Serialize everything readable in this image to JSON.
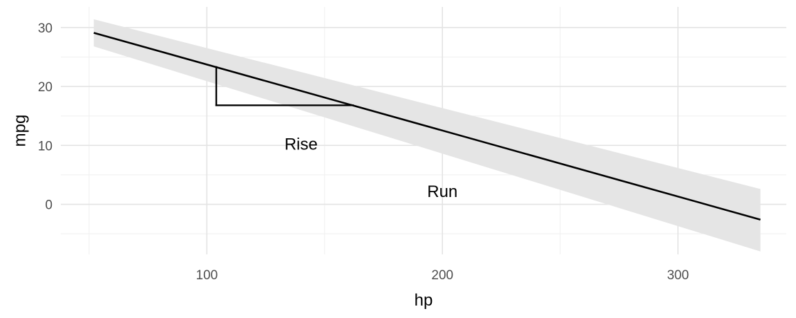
{
  "chart_data": {
    "type": "line",
    "title": "",
    "xlabel": "hp",
    "ylabel": "mpg",
    "xlim": [
      38,
      346
    ],
    "ylim": [
      -8.5,
      33.5
    ],
    "x_major_ticks": [
      100,
      200,
      300
    ],
    "x_minor_ticks": [
      50,
      150,
      250
    ],
    "y_major_ticks": [
      0,
      10,
      20,
      30
    ],
    "y_minor_ticks": [
      -5,
      5,
      15,
      25
    ],
    "x_tick_labels": [
      "100",
      "200",
      "300"
    ],
    "y_tick_labels": [
      "0",
      "10",
      "20",
      "30"
    ],
    "grid": true,
    "series": [
      {
        "x": [
          52,
          335
        ],
        "y": [
          29.1,
          -2.6
        ],
        "ci_lower": [
          26.8,
          -8.0
        ],
        "ci_upper": [
          31.4,
          2.6
        ]
      }
    ],
    "segments": [
      {
        "x": [
          104,
          104
        ],
        "y": [
          23.3,
          16.8
        ]
      },
      {
        "x": [
          104,
          162
        ],
        "y": [
          16.8,
          16.8
        ]
      }
    ],
    "annotations": [
      {
        "text": "Rise",
        "x": 140,
        "y": 10
      },
      {
        "text": "Run",
        "x": 200,
        "y": 2
      }
    ],
    "colors": {
      "line": "#000000",
      "ribbon": "#e5e5e5",
      "grid": "#e3e3e3",
      "tick_text": "#4d4d4d"
    }
  }
}
